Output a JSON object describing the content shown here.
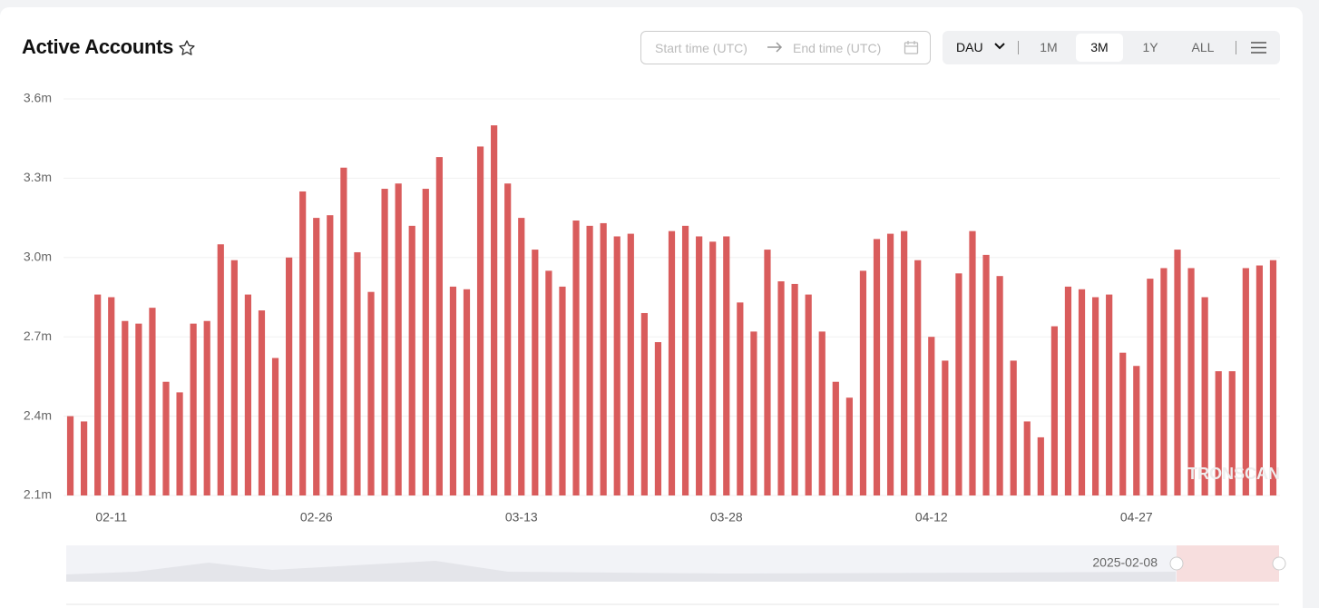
{
  "header": {
    "title": "Active Accounts"
  },
  "controls": {
    "start_placeholder": "Start time (UTC)",
    "end_placeholder": "End time (UTC)",
    "metric": "DAU",
    "ranges": [
      "1M",
      "3M",
      "1Y",
      "ALL"
    ],
    "active_range": "3M"
  },
  "slider": {
    "start_label": "2025-02-08"
  },
  "watermark": "TRONSCAN",
  "chart_data": {
    "type": "bar",
    "color": "#d95c5c",
    "grid": true,
    "ylim": [
      2.1,
      3.6
    ],
    "yticks": [
      {
        "value": 2.1,
        "label": "2.1m"
      },
      {
        "value": 2.4,
        "label": "2.4m"
      },
      {
        "value": 2.7,
        "label": "2.7m"
      },
      {
        "value": 3.0,
        "label": "3.0m"
      },
      {
        "value": 3.3,
        "label": "3.3m"
      },
      {
        "value": 3.6,
        "label": "3.6m"
      }
    ],
    "categories": [
      null,
      null,
      null,
      "02-11",
      null,
      null,
      null,
      null,
      null,
      null,
      null,
      null,
      null,
      null,
      null,
      null,
      null,
      null,
      "02-26",
      null,
      null,
      null,
      null,
      null,
      null,
      null,
      null,
      null,
      null,
      null,
      null,
      null,
      null,
      "03-13",
      null,
      null,
      null,
      null,
      null,
      null,
      null,
      null,
      null,
      null,
      null,
      null,
      null,
      null,
      "03-28",
      null,
      null,
      null,
      null,
      null,
      null,
      null,
      null,
      null,
      null,
      null,
      null,
      null,
      null,
      "04-12",
      null,
      null,
      null,
      null,
      null,
      null,
      null,
      null,
      null,
      null,
      null,
      null,
      null,
      null,
      "04-27",
      null,
      null,
      null,
      null,
      null,
      null,
      null,
      null,
      null,
      null
    ],
    "values": [
      2.4,
      2.38,
      2.86,
      2.85,
      2.76,
      2.75,
      2.81,
      2.53,
      2.49,
      2.75,
      2.76,
      3.05,
      2.99,
      2.86,
      2.8,
      2.62,
      3.0,
      3.25,
      3.15,
      3.16,
      3.34,
      3.02,
      2.87,
      3.26,
      3.28,
      3.12,
      3.26,
      3.38,
      2.89,
      2.88,
      3.42,
      3.5,
      3.28,
      3.15,
      3.03,
      2.95,
      2.89,
      3.14,
      3.12,
      3.13,
      3.08,
      3.09,
      2.79,
      2.68,
      3.1,
      3.12,
      3.08,
      3.06,
      3.08,
      2.83,
      2.72,
      3.03,
      2.91,
      2.9,
      2.86,
      2.72,
      2.53,
      2.47,
      2.95,
      3.07,
      3.09,
      3.1,
      2.99,
      2.7,
      2.61,
      2.94,
      3.1,
      3.01,
      2.93,
      2.61,
      2.38,
      2.32,
      2.74,
      2.89,
      2.88,
      2.85,
      2.86,
      2.64,
      2.59,
      2.92,
      2.96,
      3.03,
      2.96,
      2.85,
      2.57,
      2.57,
      2.96,
      2.97,
      2.99
    ]
  }
}
